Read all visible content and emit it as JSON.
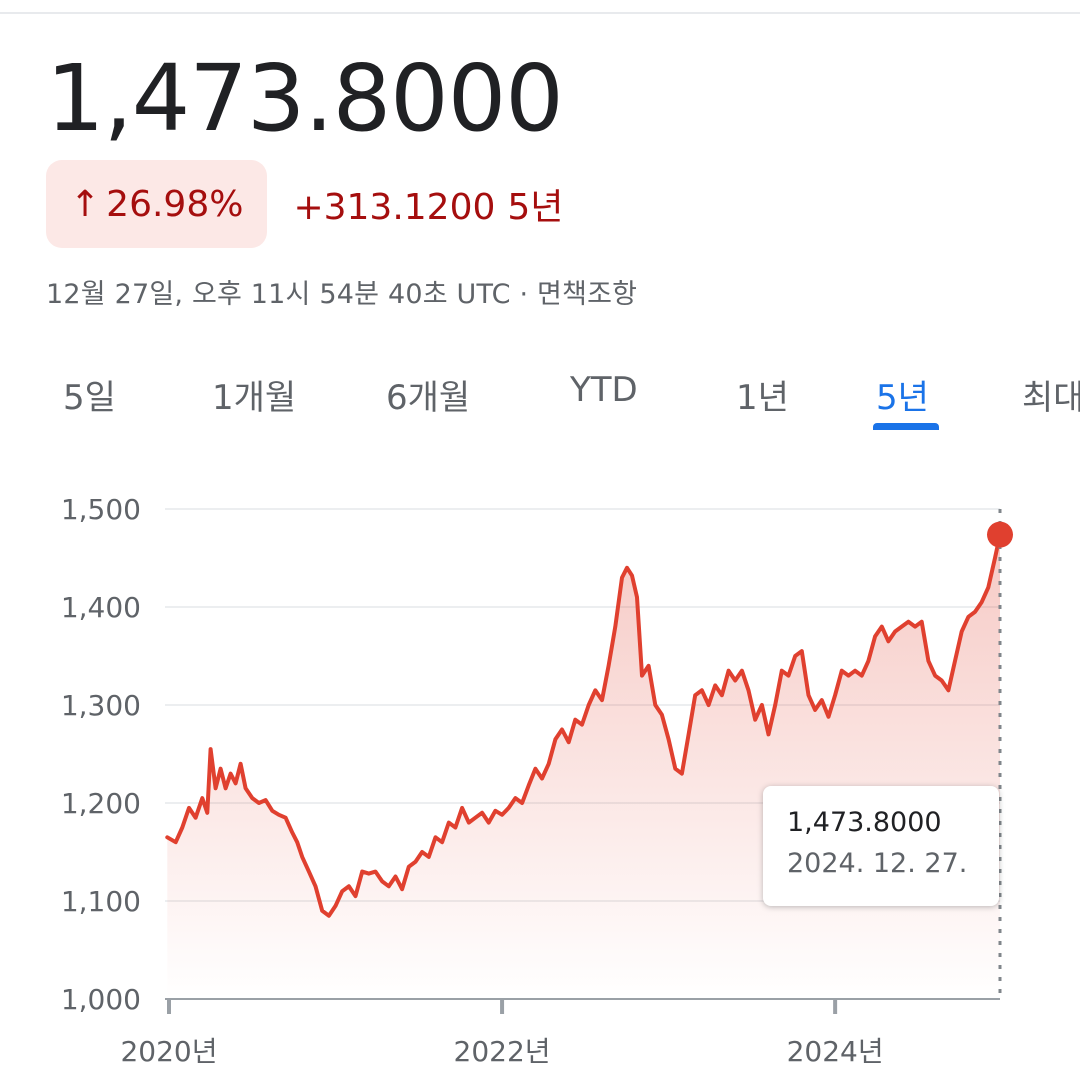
{
  "quote": {
    "price": "1,473.8000",
    "change_percent": "26.98%",
    "change_arrow": "↑",
    "change_absolute": "+313.1200",
    "change_period": "5년",
    "timestamp": "12월 27일, 오후 11시 54분 40초 UTC · 면책조항"
  },
  "tabs": [
    {
      "label": "5일",
      "active": false
    },
    {
      "label": "1개월",
      "active": false
    },
    {
      "label": "6개월",
      "active": false
    },
    {
      "label": "YTD",
      "active": false
    },
    {
      "label": "1년",
      "active": false
    },
    {
      "label": "5년",
      "active": true
    },
    {
      "label": "최대",
      "active": false
    }
  ],
  "tooltip": {
    "value": "1,473.8000",
    "date": "2024. 12. 27."
  },
  "colors": {
    "line": "#e0402f",
    "positive": "#a50e0e",
    "badge_bg": "#fce8e6",
    "accent": "#1a73e8"
  },
  "chart_data": {
    "type": "area",
    "ylim": [
      1000,
      1500
    ],
    "yticks": [
      1000,
      1100,
      1200,
      1300,
      1400,
      1500
    ],
    "ytick_labels": [
      "1,000",
      "1,100",
      "1,200",
      "1,300",
      "1,400",
      "1,500"
    ],
    "xticks": [
      2020,
      2022,
      2024
    ],
    "xtick_labels": [
      "2020년",
      "2022년",
      "2024년"
    ],
    "xlim": [
      2020,
      2024.99
    ],
    "grid": true,
    "highlight": {
      "x": 2024.99,
      "y": 1473.8
    },
    "points": [
      [
        2019.99,
        1165
      ],
      [
        2020.04,
        1160
      ],
      [
        2020.08,
        1175
      ],
      [
        2020.12,
        1195
      ],
      [
        2020.16,
        1185
      ],
      [
        2020.2,
        1205
      ],
      [
        2020.23,
        1190
      ],
      [
        2020.25,
        1255
      ],
      [
        2020.28,
        1215
      ],
      [
        2020.31,
        1235
      ],
      [
        2020.34,
        1215
      ],
      [
        2020.37,
        1230
      ],
      [
        2020.4,
        1220
      ],
      [
        2020.43,
        1240
      ],
      [
        2020.46,
        1215
      ],
      [
        2020.5,
        1205
      ],
      [
        2020.54,
        1200
      ],
      [
        2020.58,
        1203
      ],
      [
        2020.62,
        1192
      ],
      [
        2020.66,
        1188
      ],
      [
        2020.7,
        1185
      ],
      [
        2020.74,
        1170
      ],
      [
        2020.77,
        1160
      ],
      [
        2020.8,
        1145
      ],
      [
        2020.84,
        1130
      ],
      [
        2020.88,
        1115
      ],
      [
        2020.92,
        1090
      ],
      [
        2020.96,
        1085
      ],
      [
        2021.0,
        1095
      ],
      [
        2021.04,
        1110
      ],
      [
        2021.08,
        1115
      ],
      [
        2021.12,
        1105
      ],
      [
        2021.16,
        1130
      ],
      [
        2021.2,
        1128
      ],
      [
        2021.24,
        1130
      ],
      [
        2021.28,
        1120
      ],
      [
        2021.32,
        1115
      ],
      [
        2021.36,
        1125
      ],
      [
        2021.4,
        1112
      ],
      [
        2021.44,
        1135
      ],
      [
        2021.48,
        1140
      ],
      [
        2021.52,
        1150
      ],
      [
        2021.56,
        1145
      ],
      [
        2021.6,
        1165
      ],
      [
        2021.64,
        1160
      ],
      [
        2021.68,
        1180
      ],
      [
        2021.72,
        1175
      ],
      [
        2021.76,
        1195
      ],
      [
        2021.8,
        1180
      ],
      [
        2021.84,
        1185
      ],
      [
        2021.88,
        1190
      ],
      [
        2021.92,
        1180
      ],
      [
        2021.96,
        1192
      ],
      [
        2022.0,
        1188
      ],
      [
        2022.04,
        1195
      ],
      [
        2022.08,
        1205
      ],
      [
        2022.12,
        1200
      ],
      [
        2022.16,
        1218
      ],
      [
        2022.2,
        1235
      ],
      [
        2022.24,
        1225
      ],
      [
        2022.28,
        1240
      ],
      [
        2022.32,
        1265
      ],
      [
        2022.36,
        1275
      ],
      [
        2022.4,
        1262
      ],
      [
        2022.44,
        1285
      ],
      [
        2022.48,
        1280
      ],
      [
        2022.52,
        1300
      ],
      [
        2022.56,
        1315
      ],
      [
        2022.6,
        1305
      ],
      [
        2022.64,
        1340
      ],
      [
        2022.68,
        1380
      ],
      [
        2022.72,
        1430
      ],
      [
        2022.75,
        1440
      ],
      [
        2022.78,
        1432
      ],
      [
        2022.81,
        1410
      ],
      [
        2022.84,
        1330
      ],
      [
        2022.88,
        1340
      ],
      [
        2022.92,
        1300
      ],
      [
        2022.96,
        1290
      ],
      [
        2023.0,
        1265
      ],
      [
        2023.04,
        1235
      ],
      [
        2023.08,
        1230
      ],
      [
        2023.12,
        1270
      ],
      [
        2023.16,
        1310
      ],
      [
        2023.2,
        1315
      ],
      [
        2023.24,
        1300
      ],
      [
        2023.28,
        1320
      ],
      [
        2023.32,
        1310
      ],
      [
        2023.36,
        1335
      ],
      [
        2023.4,
        1325
      ],
      [
        2023.44,
        1335
      ],
      [
        2023.48,
        1315
      ],
      [
        2023.52,
        1285
      ],
      [
        2023.56,
        1300
      ],
      [
        2023.6,
        1270
      ],
      [
        2023.64,
        1300
      ],
      [
        2023.68,
        1335
      ],
      [
        2023.72,
        1330
      ],
      [
        2023.76,
        1350
      ],
      [
        2023.8,
        1355
      ],
      [
        2023.84,
        1310
      ],
      [
        2023.88,
        1295
      ],
      [
        2023.92,
        1305
      ],
      [
        2023.96,
        1288
      ],
      [
        2024.0,
        1310
      ],
      [
        2024.04,
        1335
      ],
      [
        2024.08,
        1330
      ],
      [
        2024.12,
        1335
      ],
      [
        2024.16,
        1330
      ],
      [
        2024.2,
        1345
      ],
      [
        2024.24,
        1370
      ],
      [
        2024.28,
        1380
      ],
      [
        2024.32,
        1365
      ],
      [
        2024.36,
        1375
      ],
      [
        2024.4,
        1380
      ],
      [
        2024.44,
        1385
      ],
      [
        2024.48,
        1380
      ],
      [
        2024.52,
        1385
      ],
      [
        2024.56,
        1345
      ],
      [
        2024.6,
        1330
      ],
      [
        2024.64,
        1325
      ],
      [
        2024.68,
        1315
      ],
      [
        2024.72,
        1345
      ],
      [
        2024.76,
        1375
      ],
      [
        2024.8,
        1390
      ],
      [
        2024.84,
        1395
      ],
      [
        2024.88,
        1405
      ],
      [
        2024.92,
        1420
      ],
      [
        2024.96,
        1450
      ],
      [
        2024.99,
        1473.8
      ]
    ]
  }
}
